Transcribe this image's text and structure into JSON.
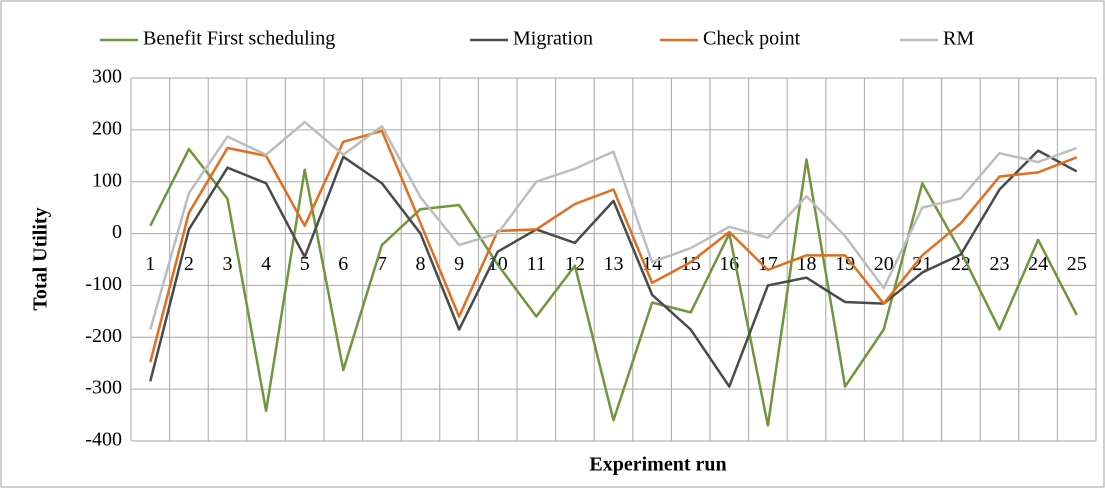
{
  "chart_data": {
    "type": "line",
    "x_label": "Experiment run",
    "y_label": "Total Utility",
    "categories": [
      "1",
      "2",
      "3",
      "4",
      "5",
      "6",
      "7",
      "8",
      "9",
      "10",
      "11",
      "12",
      "13",
      "14",
      "15",
      "16",
      "17",
      "18",
      "19",
      "20",
      "21",
      "22",
      "23",
      "24",
      "25"
    ],
    "series": [
      {
        "name": "Benefit First scheduling",
        "color": "#70963c",
        "values": [
          15,
          163,
          67,
          -342,
          123,
          -263,
          -22,
          47,
          55,
          -60,
          -160,
          -62,
          -360,
          -133,
          -152,
          0,
          -370,
          143,
          -295,
          -185,
          97,
          -35,
          -185,
          -12,
          -157
        ]
      },
      {
        "name": "Migration",
        "color": "#4a4a4a",
        "values": [
          -285,
          8,
          127,
          97,
          -45,
          148,
          97,
          0,
          -185,
          -35,
          8,
          -18,
          63,
          -118,
          -185,
          -295,
          -100,
          -85,
          -132,
          -135,
          -75,
          -40,
          85,
          160,
          120
        ]
      },
      {
        "name": "Check point",
        "color": "#e46c1c",
        "values": [
          -248,
          40,
          165,
          150,
          15,
          177,
          198,
          20,
          -160,
          5,
          8,
          57,
          85,
          -95,
          -55,
          3,
          -70,
          -42,
          -42,
          -135,
          -42,
          20,
          110,
          118,
          147
        ]
      },
      {
        "name": "RM",
        "color": "#bdbdbd",
        "values": [
          -185,
          78,
          187,
          152,
          215,
          152,
          207,
          70,
          -22,
          0,
          100,
          125,
          158,
          -55,
          -28,
          13,
          -8,
          72,
          -5,
          -105,
          50,
          68,
          155,
          138,
          165
        ]
      }
    ],
    "ylim": [
      -400,
      300
    ],
    "yticks": [
      -400,
      -300,
      -200,
      -100,
      0,
      100,
      200,
      300
    ],
    "grid": true,
    "legend": "top"
  }
}
